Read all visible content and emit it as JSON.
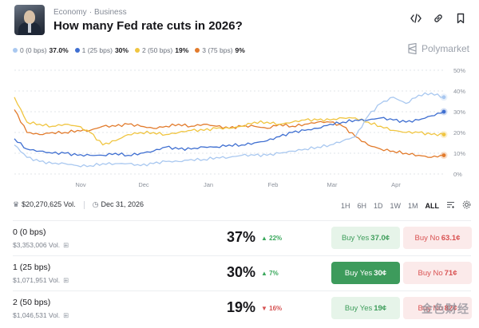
{
  "header": {
    "breadcrumb": [
      "Economy",
      "Business"
    ],
    "title": "How many Fed rate cuts in 2026?",
    "icons": [
      "embed-icon",
      "link-icon",
      "bookmark-icon"
    ]
  },
  "brand": "Polymarket",
  "legend": [
    {
      "label": "0 (0 bps)",
      "value": "37.0%",
      "color": "#a9c8f0"
    },
    {
      "label": "1 (25 bps)",
      "value": "30%",
      "color": "#3f6fd1"
    },
    {
      "label": "2 (50 bps)",
      "value": "19%",
      "color": "#f0c540"
    },
    {
      "label": "3 (75 bps)",
      "value": "9%",
      "color": "#e27b2c"
    }
  ],
  "chart_data": {
    "type": "line",
    "x_tick_labels": [
      "Nov",
      "Dec",
      "Jan",
      "Feb",
      "Mar",
      "Apr"
    ],
    "y_tick_labels": [
      "0%",
      "10%",
      "20%",
      "30%",
      "40%",
      "50%"
    ],
    "ylim": [
      0,
      50
    ],
    "grid": true,
    "series": [
      {
        "name": "0 (0 bps)",
        "color": "#a9c8f0",
        "values": [
          14,
          8,
          6,
          5,
          5,
          4,
          4,
          5,
          5,
          5,
          4,
          5,
          6,
          6,
          7,
          7,
          8,
          8,
          9,
          9,
          9,
          10,
          11,
          12,
          13,
          14,
          16,
          18,
          28,
          34,
          37,
          34,
          38,
          39,
          37
        ]
      },
      {
        "name": "1 (25 bps)",
        "color": "#3f6fd1",
        "values": [
          17,
          12,
          11,
          10,
          10,
          9,
          9,
          9,
          10,
          9,
          10,
          11,
          13,
          12,
          12,
          13,
          13,
          14,
          14,
          15,
          16,
          18,
          20,
          21,
          22,
          24,
          25,
          26,
          26,
          27,
          26,
          25,
          26,
          28,
          30
        ]
      },
      {
        "name": "2 (50 bps)",
        "color": "#f0c540",
        "values": [
          37,
          25,
          24,
          23,
          24,
          23,
          20,
          14,
          16,
          19,
          20,
          20,
          19,
          20,
          21,
          21,
          22,
          22,
          23,
          25,
          25,
          24,
          25,
          26,
          26,
          26,
          27,
          27,
          25,
          23,
          21,
          20,
          20,
          19,
          19
        ]
      },
      {
        "name": "3 (75 bps)",
        "color": "#e27b2c",
        "values": [
          31,
          20,
          19,
          20,
          20,
          21,
          21,
          23,
          23,
          24,
          23,
          22,
          23,
          24,
          23,
          24,
          23,
          22,
          23,
          23,
          22,
          24,
          23,
          24,
          25,
          25,
          23,
          18,
          14,
          12,
          11,
          10,
          9,
          8,
          9
        ]
      }
    ]
  },
  "stats": {
    "volume": "$20,270,625 Vol.",
    "date": "Dec 31, 2026"
  },
  "ranges": [
    "1H",
    "6H",
    "1D",
    "1W",
    "1M",
    "ALL"
  ],
  "outcomes": [
    {
      "name": "0 (0 bps)",
      "volume": "$3,353,006 Vol.",
      "pct": "37%",
      "change": "22%",
      "dir": "up",
      "yes_label": "Buy Yes",
      "yes_price": "37.0¢",
      "no_label": "Buy No",
      "no_price": "63.1¢"
    },
    {
      "name": "1 (25 bps)",
      "volume": "$1,071,951 Vol.",
      "pct": "30%",
      "change": "7%",
      "dir": "up",
      "yes_label": "Buy Yes",
      "yes_price": "30¢",
      "no_label": "Buy No",
      "no_price": "71¢"
    },
    {
      "name": "2 (50 bps)",
      "volume": "$1,046,531 Vol.",
      "pct": "19%",
      "change": "16%",
      "dir": "down",
      "yes_label": "Buy Yes",
      "yes_price": "19¢",
      "no_label": "Buy No",
      "no_price": "82¢"
    }
  ],
  "watermark": "金色财经"
}
